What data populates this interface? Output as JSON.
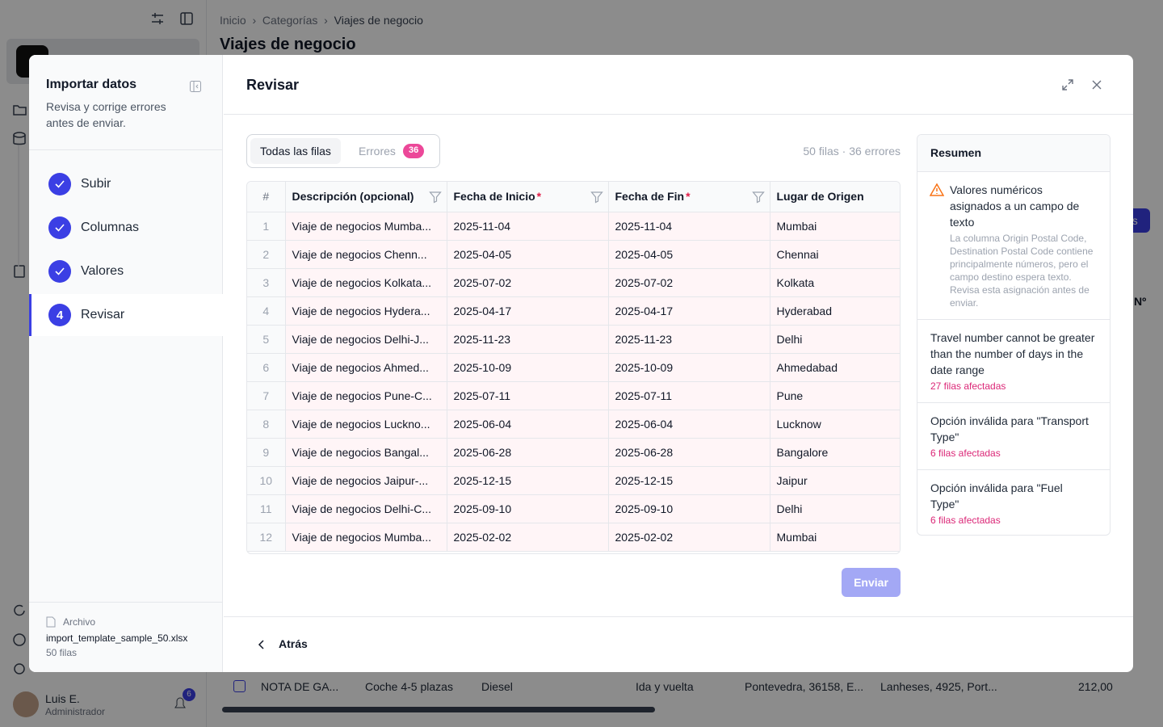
{
  "app": {
    "breadcrumb": [
      "Inicio",
      "Categorías",
      "Viajes de negocio"
    ],
    "title": "Viajes de negocio",
    "button_partial": "os",
    "column_partial": "Nº",
    "background_row": [
      "NOTA DE GA...",
      "Coche 4-5 plazas",
      "Diesel",
      "Ida y vuelta",
      "Pontevedra, 36158, E...",
      "Lanheses, 4925, Port...",
      "212,00"
    ],
    "user": {
      "name": "Luis E.",
      "role": "Administrador",
      "notifications": 6
    }
  },
  "modal": {
    "sidebar": {
      "title": "Importar datos",
      "subtitle": "Revisa y corrige errores antes de enviar.",
      "steps": [
        {
          "label": "Subir"
        },
        {
          "label": "Columnas"
        },
        {
          "label": "Valores"
        },
        {
          "number": 4,
          "label": "Revisar"
        }
      ],
      "file": {
        "label": "Archivo",
        "name": "import_template_sample_50.xlsx",
        "rows": "50 filas"
      }
    },
    "header": {
      "title": "Revisar"
    },
    "tabs": [
      {
        "label": "Todas las filas"
      },
      {
        "label": "Errores",
        "badge": 36
      }
    ],
    "status": "50 filas · 36 errores",
    "table": {
      "required_mark": "*",
      "columns": [
        {
          "label": "#"
        },
        {
          "label": "Descripción (opcional)"
        },
        {
          "label": "Fecha de Inicio",
          "required": true
        },
        {
          "label": "Fecha de Fin",
          "required": true
        },
        {
          "label": "Lugar de Origen"
        }
      ],
      "rows": [
        [
          1,
          "Viaje de negocios Mumba...",
          "2025-11-04",
          "2025-11-04",
          "Mumbai"
        ],
        [
          2,
          "Viaje de negocios Chenn...",
          "2025-04-05",
          "2025-04-05",
          "Chennai"
        ],
        [
          3,
          "Viaje de negocios Kolkata...",
          "2025-07-02",
          "2025-07-02",
          "Kolkata"
        ],
        [
          4,
          "Viaje de negocios Hydera...",
          "2025-04-17",
          "2025-04-17",
          "Hyderabad"
        ],
        [
          5,
          "Viaje de negocios Delhi-J...",
          "2025-11-23",
          "2025-11-23",
          "Delhi"
        ],
        [
          6,
          "Viaje de negocios Ahmed...",
          "2025-10-09",
          "2025-10-09",
          "Ahmedabad"
        ],
        [
          7,
          "Viaje de negocios Pune-C...",
          "2025-07-11",
          "2025-07-11",
          "Pune"
        ],
        [
          8,
          "Viaje de negocios Luckno...",
          "2025-06-04",
          "2025-06-04",
          "Lucknow"
        ],
        [
          9,
          "Viaje de negocios Bangal...",
          "2025-06-28",
          "2025-06-28",
          "Bangalore"
        ],
        [
          10,
          "Viaje de negocios Jaipur-...",
          "2025-12-15",
          "2025-12-15",
          "Jaipur"
        ],
        [
          11,
          "Viaje de negocios Delhi-C...",
          "2025-09-10",
          "2025-09-10",
          "Delhi"
        ],
        [
          12,
          "Viaje de negocios Mumba...",
          "2025-02-02",
          "2025-02-02",
          "Mumbai"
        ]
      ]
    },
    "summary": {
      "title": "Resumen",
      "items": [
        {
          "title": "Valores numéricos asignados a un campo de texto",
          "description": "La columna Origin Postal Code, Destination Postal Code contiene principalmente números, pero el campo destino espera texto. Revisa esta asignación antes de enviar."
        },
        {
          "title": "Travel number cannot be greater than the number of days in the date range",
          "detail": "27 filas afectadas"
        },
        {
          "title": "Opción inválida para \"Transport Type\"",
          "detail": "6 filas afectadas"
        },
        {
          "title": "Opción inválida para \"Fuel Type\"",
          "detail": "6 filas afectadas"
        }
      ]
    },
    "submit": "Enviar",
    "back": "Atrás"
  }
}
